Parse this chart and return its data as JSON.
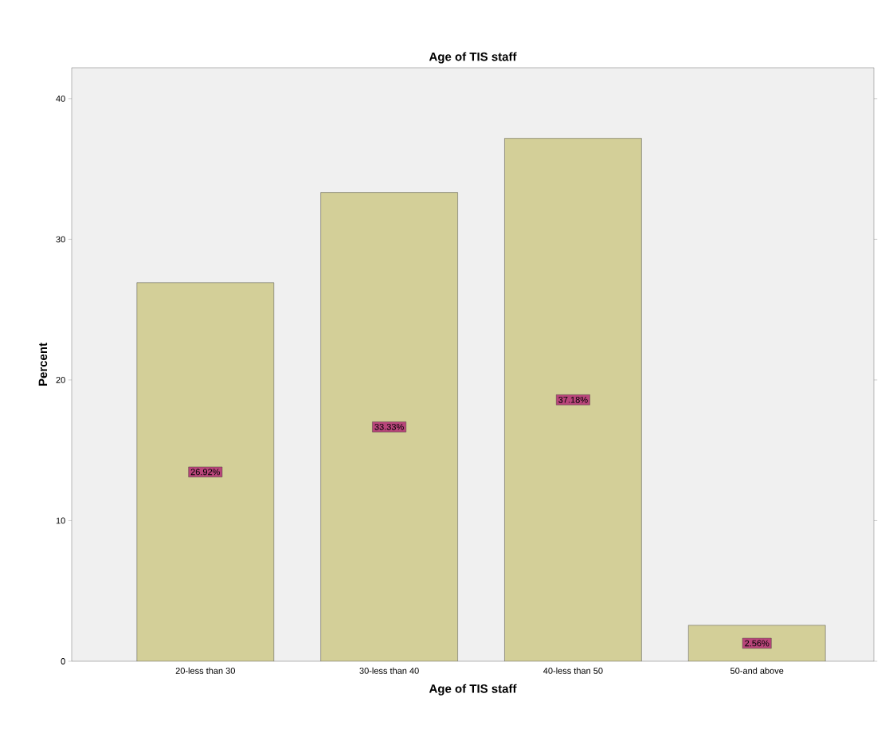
{
  "chart_data": {
    "type": "bar",
    "title": "Age of TIS staff",
    "xlabel": "Age of TIS staff",
    "ylabel": "Percent",
    "categories": [
      "20-less than 30",
      "30-less than 40",
      "40-less than 50",
      "50-and above"
    ],
    "values": [
      26.92,
      33.33,
      37.18,
      2.56
    ],
    "value_labels": [
      "26.92%",
      "33.33%",
      "37.18%",
      "2.56%"
    ],
    "color": "#d3cf98",
    "ylim": [
      0,
      42.2
    ],
    "yticks": [
      0,
      10,
      20,
      30,
      40
    ],
    "grid": false
  }
}
